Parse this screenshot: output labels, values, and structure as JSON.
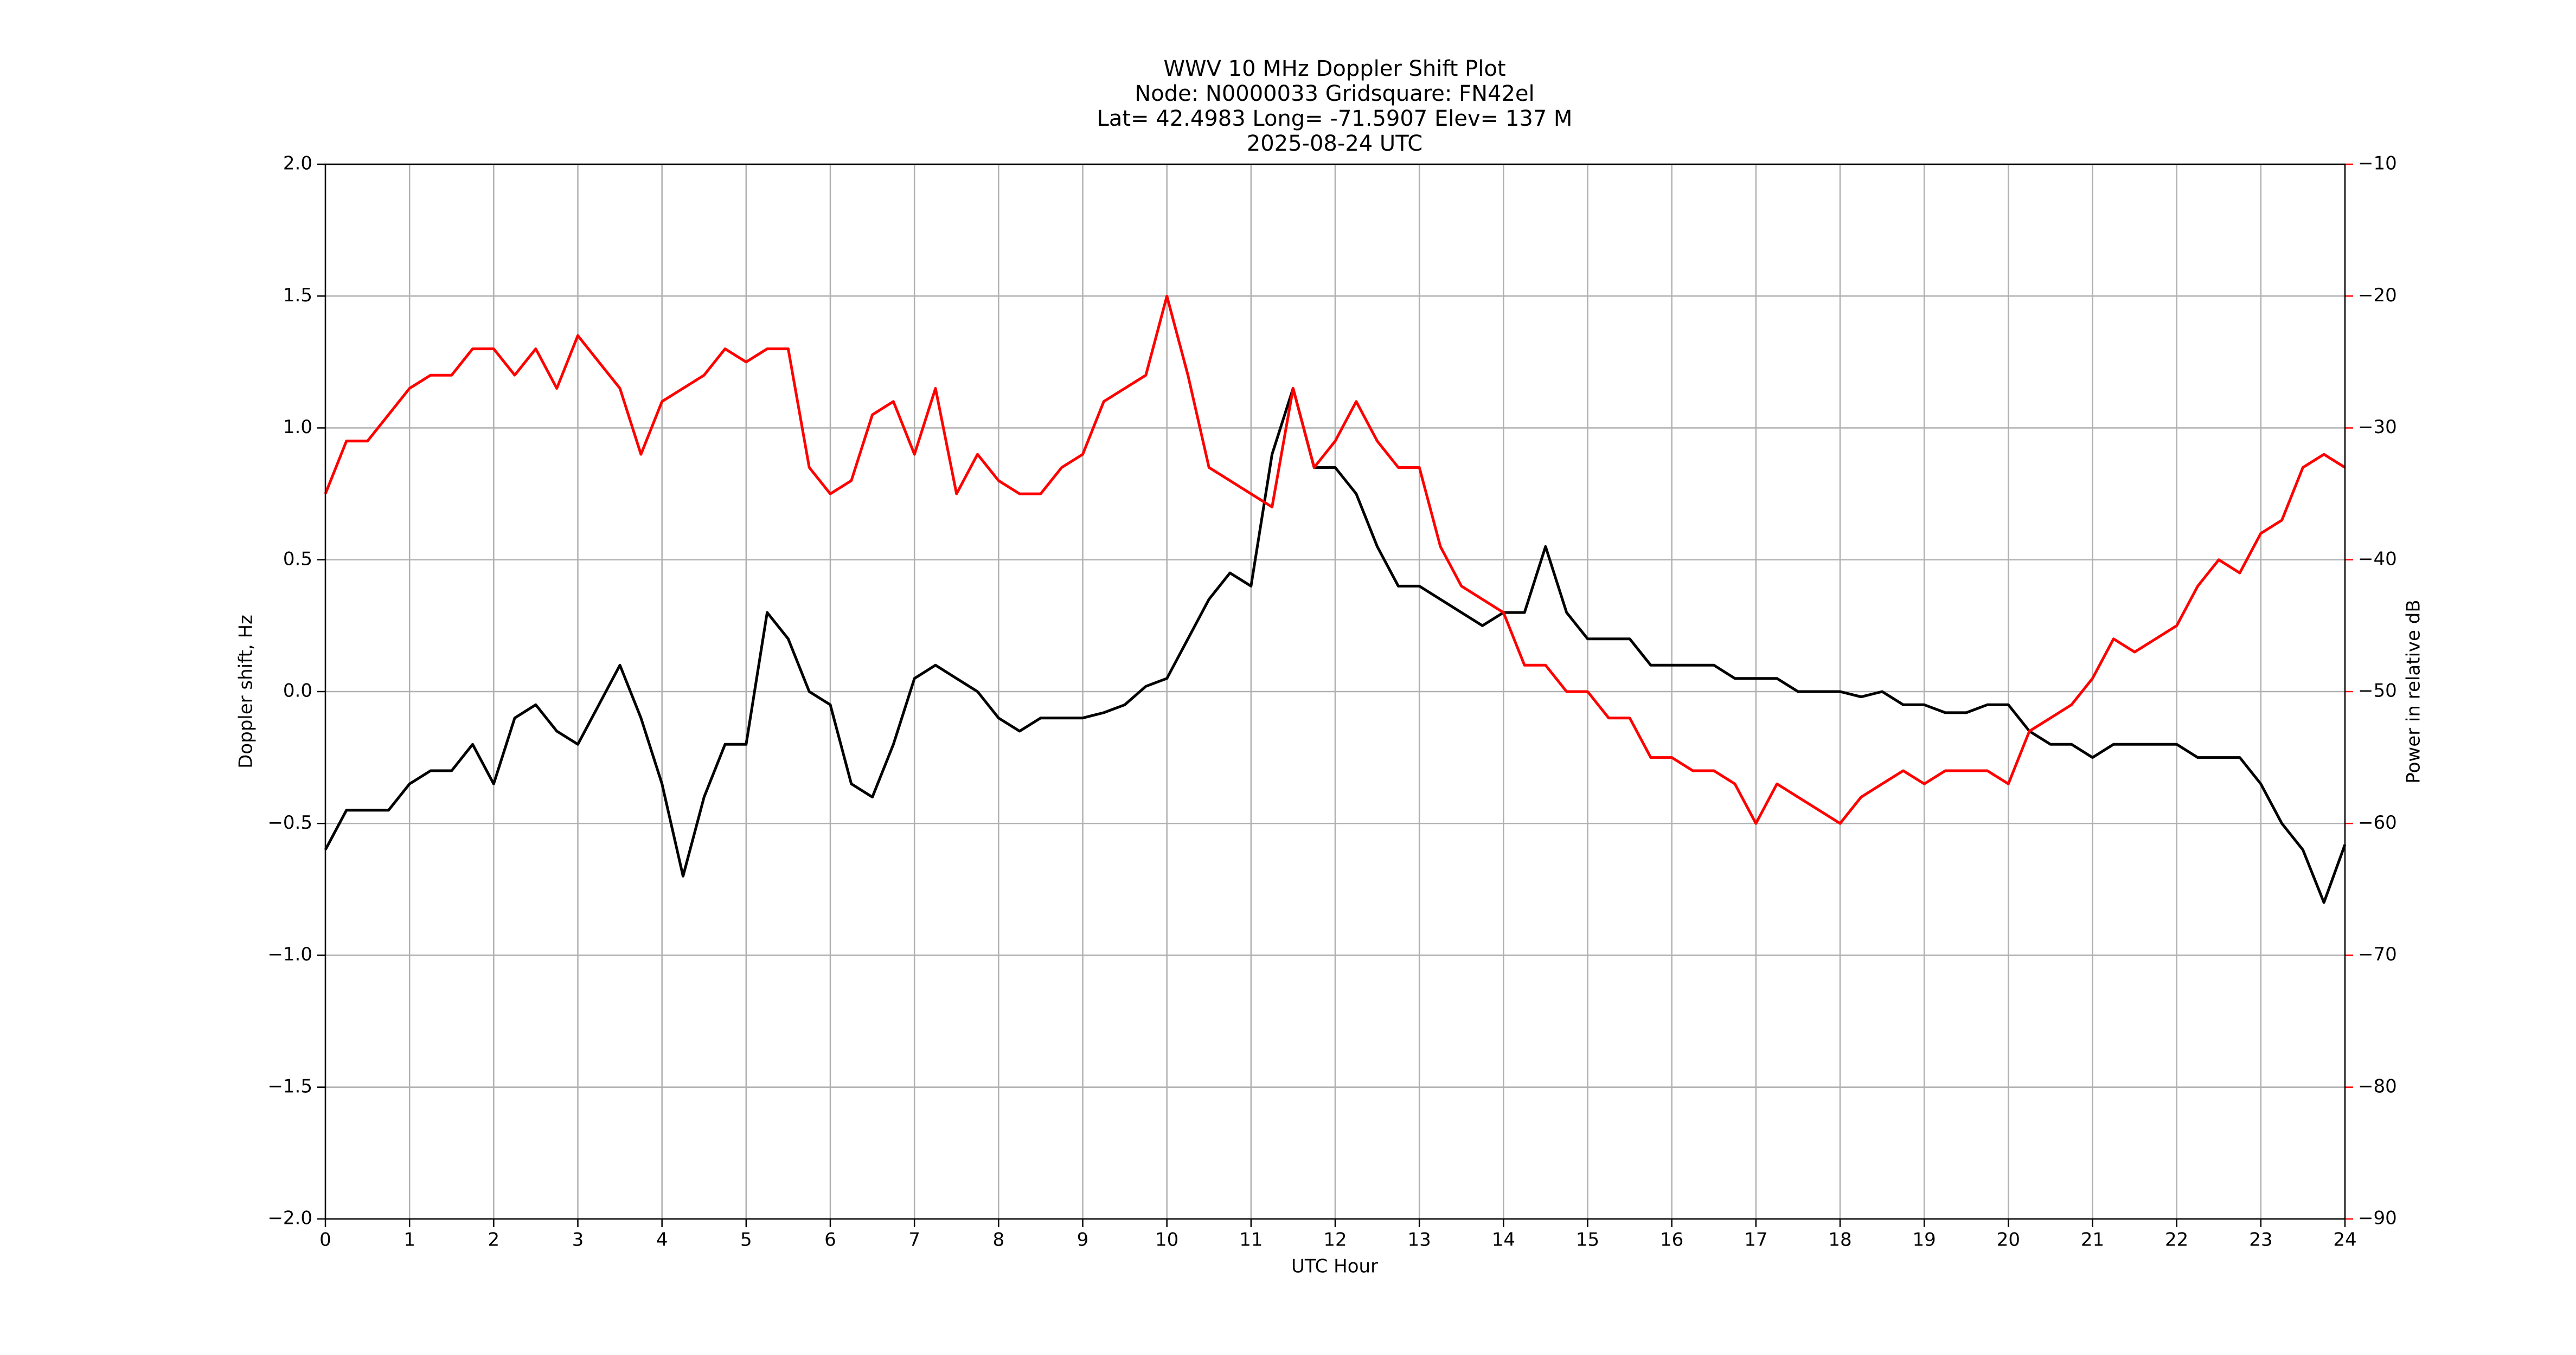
{
  "chart_data": {
    "type": "line",
    "title": [
      "WWV 10 MHz Doppler Shift Plot",
      "Node:  N0000033     Gridsquare:  FN42el",
      "Lat= 42.4983    Long= -71.5907    Elev= 137 M",
      "2025-08-24  UTC"
    ],
    "x_label": "UTC Hour",
    "y_label": "Doppler shift, Hz",
    "y2_label": "Power in relative dB",
    "y2_label_color": "#ff0000",
    "x": [
      0,
      0.25,
      0.5,
      0.75,
      1,
      1.25,
      1.5,
      1.75,
      2,
      2.25,
      2.5,
      2.75,
      3,
      3.25,
      3.5,
      3.75,
      4,
      4.25,
      4.5,
      4.75,
      5,
      5.25,
      5.5,
      5.75,
      6,
      6.25,
      6.5,
      6.75,
      7,
      7.25,
      7.5,
      7.75,
      8,
      8.25,
      8.5,
      8.75,
      9,
      9.25,
      9.5,
      9.75,
      10,
      10.25,
      10.5,
      10.75,
      11,
      11.25,
      11.5,
      11.75,
      12,
      12.25,
      12.5,
      12.75,
      13,
      13.25,
      13.5,
      13.75,
      14,
      14.25,
      14.5,
      14.75,
      15,
      15.25,
      15.5,
      15.75,
      16,
      16.25,
      16.5,
      16.75,
      17,
      17.25,
      17.5,
      17.75,
      18,
      18.25,
      18.5,
      18.75,
      19,
      19.25,
      19.5,
      19.75,
      20,
      20.25,
      20.5,
      20.75,
      21,
      21.25,
      21.5,
      21.75,
      22,
      22.25,
      22.5,
      22.75,
      23,
      23.25,
      23.5,
      23.75,
      24
    ],
    "series": [
      {
        "color": "#000000",
        "values": [
          -0.6,
          -0.45,
          -0.45,
          -0.45,
          -0.35,
          -0.3,
          -0.3,
          -0.2,
          -0.35,
          -0.1,
          -0.05,
          -0.15,
          -0.2,
          -0.05,
          0.1,
          -0.1,
          -0.35,
          -0.7,
          -0.4,
          -0.2,
          -0.2,
          0.3,
          0.2,
          0.0,
          -0.05,
          -0.35,
          -0.4,
          -0.2,
          0.05,
          0.1,
          0.05,
          0.0,
          -0.1,
          -0.15,
          -0.1,
          -0.1,
          -0.1,
          -0.08,
          -0.05,
          0.02,
          0.05,
          0.2,
          0.35,
          0.45,
          0.4,
          0.9,
          1.15,
          0.85,
          0.85,
          0.75,
          0.55,
          0.4,
          0.4,
          0.35,
          0.3,
          0.25,
          0.3,
          0.3,
          0.55,
          0.3,
          0.2,
          0.2,
          0.2,
          0.1,
          0.1,
          0.1,
          0.1,
          0.05,
          0.05,
          0.05,
          0.0,
          0.0,
          0.0,
          -0.02,
          0.0,
          -0.05,
          -0.05,
          -0.08,
          -0.08,
          -0.05,
          -0.05,
          -0.15,
          -0.2,
          -0.2,
          -0.25,
          -0.2,
          -0.2,
          -0.2,
          -0.2,
          -0.25,
          -0.25,
          -0.25,
          -0.35,
          -0.5,
          -0.6,
          -0.8,
          -0.58
        ]
      },
      {
        "color": "#ff0000",
        "axis": "y2",
        "values": [
          -35,
          -31,
          -31,
          -29,
          -27,
          -26,
          -26,
          -24,
          -24,
          -26,
          -24,
          -27,
          -23,
          -25,
          -27,
          -32,
          -28,
          -27,
          -26,
          -24,
          -25,
          -24,
          -24,
          -33,
          -35,
          -34,
          -29,
          -28,
          -32,
          -27,
          -35,
          -32,
          -34,
          -35,
          -35,
          -33,
          -32,
          -28,
          -27,
          -26,
          -20,
          -26,
          -33,
          -34,
          -35,
          -36,
          -27,
          -33,
          -31,
          -28,
          -31,
          -33,
          -33,
          -39,
          -42,
          -43,
          -44,
          -48,
          -48,
          -50,
          -50,
          -52,
          -52,
          -55,
          -55,
          -56,
          -56,
          -57,
          -60,
          -57,
          -58,
          -59,
          -60,
          -58,
          -57,
          -56,
          -57,
          -56,
          -56,
          -56,
          -57,
          -53,
          -52,
          -51,
          -49,
          -46,
          -47,
          -46,
          -45,
          -42,
          -40,
          -41,
          -38,
          -37,
          -33,
          -32,
          -33
        ]
      }
    ],
    "xlim": [
      0,
      24
    ],
    "xticks": [
      0,
      1,
      2,
      3,
      4,
      5,
      6,
      7,
      8,
      9,
      10,
      11,
      12,
      13,
      14,
      15,
      16,
      17,
      18,
      19,
      20,
      21,
      22,
      23,
      24
    ],
    "ylim": [
      -2,
      2
    ],
    "yticks": [
      {
        "value": -2,
        "label": "−2.0"
      },
      {
        "value": -1.5,
        "label": "−1.5"
      },
      {
        "value": -1,
        "label": "−1.0"
      },
      {
        "value": -0.5,
        "label": "−0.5"
      },
      {
        "value": 0,
        "label": "0.0"
      },
      0.5,
      {
        "value": 1,
        "label": "1.0"
      },
      1.5,
      {
        "value": 2,
        "label": "2.0"
      }
    ],
    "y2lim": [
      -90,
      -10
    ],
    "y2ticks": [
      {
        "value": -90,
        "label": "−90"
      },
      {
        "value": -80,
        "label": "−80"
      },
      {
        "value": -70,
        "label": "−70"
      },
      {
        "value": -60,
        "label": "−60"
      },
      {
        "value": -50,
        "label": "−50"
      },
      {
        "value": -40,
        "label": "−40"
      },
      {
        "value": -30,
        "label": "−30"
      },
      {
        "value": -20,
        "label": "−20"
      },
      {
        "value": -10,
        "label": "−10"
      }
    ],
    "grid": true
  }
}
